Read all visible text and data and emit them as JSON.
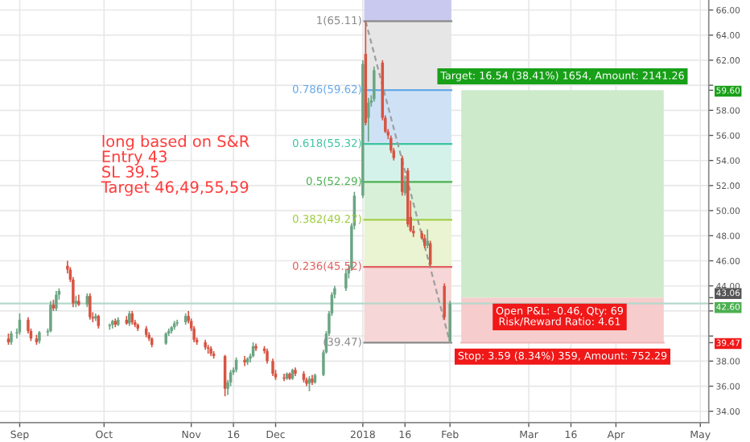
{
  "chart_data": {
    "type": "candlestick",
    "x": [
      "2017-08-28",
      "2017-08-29",
      "2017-08-31",
      "2017-09-01",
      "2017-09-04",
      "2017-09-05",
      "2017-09-07",
      "2017-09-08",
      "2017-09-11",
      "2017-09-12",
      "2017-09-13",
      "2017-09-14",
      "2017-09-15",
      "2017-09-18",
      "2017-09-19",
      "2017-09-20",
      "2017-09-21",
      "2017-09-22",
      "2017-09-25",
      "2017-09-26",
      "2017-09-27",
      "2017-09-28",
      "2017-09-29",
      "2017-10-03",
      "2017-10-04",
      "2017-10-05",
      "2017-10-06",
      "2017-10-09",
      "2017-10-10",
      "2017-10-11",
      "2017-10-12",
      "2017-10-13",
      "2017-10-16",
      "2017-10-17",
      "2017-10-18",
      "2017-10-23",
      "2017-10-24",
      "2017-10-25",
      "2017-10-26",
      "2017-10-27",
      "2017-10-30",
      "2017-10-31",
      "2017-11-01",
      "2017-11-02",
      "2017-11-03",
      "2017-11-06",
      "2017-11-07",
      "2017-11-08",
      "2017-11-09",
      "2017-11-13",
      "2017-11-14",
      "2017-11-15",
      "2017-11-16",
      "2017-11-17",
      "2017-11-20",
      "2017-11-21",
      "2017-11-22",
      "2017-11-23",
      "2017-11-24",
      "2017-11-27",
      "2017-11-28",
      "2017-11-30",
      "2017-12-01",
      "2017-12-04",
      "2017-12-05",
      "2017-12-06",
      "2017-12-07",
      "2017-12-08",
      "2017-12-11",
      "2017-12-12",
      "2017-12-13",
      "2017-12-14",
      "2017-12-15",
      "2017-12-18",
      "2017-12-19",
      "2017-12-20",
      "2017-12-21",
      "2017-12-22",
      "2017-12-26",
      "2017-12-27",
      "2017-12-28",
      "2017-12-29",
      "2018-01-01",
      "2018-01-02",
      "2018-01-03",
      "2018-01-04",
      "2018-01-05",
      "2018-01-08",
      "2018-01-09",
      "2018-01-10",
      "2018-01-11",
      "2018-01-12",
      "2018-01-15",
      "2018-01-16",
      "2018-01-17",
      "2018-01-18",
      "2018-01-19",
      "2018-01-22",
      "2018-01-23",
      "2018-01-24",
      "2018-01-25",
      "2018-01-30",
      "2018-02-01"
    ],
    "ohlc": [
      [
        39.8,
        40.2,
        39.3,
        39.5
      ],
      [
        39.5,
        40.4,
        39.3,
        40.2
      ],
      [
        40.2,
        40.6,
        39.8,
        40.3
      ],
      [
        40.3,
        41.8,
        40.1,
        41.3
      ],
      [
        41.3,
        41.5,
        40.2,
        40.4
      ],
      [
        40.4,
        40.6,
        39.6,
        39.8
      ],
      [
        39.8,
        40.1,
        39.3,
        39.5
      ],
      [
        39.6,
        40.4,
        39.4,
        40.3
      ],
      [
        40.3,
        40.6,
        40.0,
        40.4
      ],
      [
        40.4,
        42.8,
        40.3,
        42.5
      ],
      [
        42.5,
        42.9,
        42.0,
        42.2
      ],
      [
        42.2,
        43.6,
        42.0,
        43.3
      ],
      [
        43.3,
        43.8,
        42.9,
        43.6
      ],
      [
        45.6,
        46.0,
        45.0,
        45.3
      ],
      [
        45.3,
        45.5,
        44.3,
        44.5
      ],
      [
        44.5,
        44.7,
        42.3,
        42.6
      ],
      [
        42.6,
        43.2,
        42.3,
        42.8
      ],
      [
        42.8,
        43.3,
        42.4,
        42.5
      ],
      [
        42.5,
        43.4,
        42.3,
        43.2
      ],
      [
        43.2,
        43.4,
        41.3,
        41.5
      ],
      [
        41.5,
        41.9,
        41.1,
        41.4
      ],
      [
        41.4,
        41.8,
        41.2,
        41.6
      ],
      [
        41.6,
        41.7,
        40.6,
        40.8
      ],
      [
        40.8,
        41.0,
        40.5,
        40.9
      ],
      [
        40.9,
        41.3,
        40.6,
        41.2
      ],
      [
        41.2,
        41.4,
        40.7,
        40.9
      ],
      [
        40.9,
        41.5,
        40.8,
        41.3
      ],
      [
        41.3,
        41.6,
        40.9,
        41.0
      ],
      [
        41.0,
        42.0,
        40.8,
        41.8
      ],
      [
        41.8,
        42.0,
        40.9,
        41.1
      ],
      [
        41.1,
        41.3,
        40.7,
        40.9
      ],
      [
        40.9,
        41.0,
        40.4,
        40.6
      ],
      [
        40.6,
        40.8,
        39.9,
        40.1
      ],
      [
        40.1,
        40.3,
        39.6,
        39.8
      ],
      [
        39.8,
        39.9,
        39.1,
        39.3
      ],
      [
        39.4,
        40.3,
        39.3,
        40.2
      ],
      [
        40.2,
        40.6,
        40.0,
        40.4
      ],
      [
        40.4,
        40.8,
        40.2,
        40.7
      ],
      [
        40.7,
        41.2,
        40.5,
        41.0
      ],
      [
        41.0,
        41.3,
        40.8,
        41.1
      ],
      [
        41.1,
        41.8,
        40.9,
        41.6
      ],
      [
        41.6,
        42.0,
        41.0,
        41.2
      ],
      [
        41.2,
        41.4,
        40.4,
        40.6
      ],
      [
        40.6,
        40.8,
        39.5,
        39.7
      ],
      [
        39.7,
        39.9,
        39.3,
        39.5
      ],
      [
        39.5,
        39.7,
        38.9,
        39.1
      ],
      [
        39.1,
        39.3,
        38.6,
        39.0
      ],
      [
        39.0,
        39.2,
        38.4,
        38.6
      ],
      [
        38.6,
        38.8,
        38.2,
        38.4
      ],
      [
        38.4,
        38.5,
        35.2,
        35.8
      ],
      [
        35.8,
        36.5,
        35.3,
        36.3
      ],
      [
        36.3,
        37.3,
        36.0,
        37.1
      ],
      [
        37.1,
        37.5,
        36.9,
        37.3
      ],
      [
        37.3,
        38.3,
        37.1,
        38.1
      ],
      [
        38.1,
        38.4,
        37.6,
        37.9
      ],
      [
        37.9,
        38.3,
        37.7,
        38.2
      ],
      [
        38.2,
        38.6,
        37.9,
        38.4
      ],
      [
        38.4,
        39.5,
        38.3,
        39.2
      ],
      [
        39.2,
        39.4,
        38.8,
        39.0
      ],
      [
        39.0,
        39.2,
        38.6,
        38.8
      ],
      [
        38.8,
        39.0,
        37.8,
        38.0
      ],
      [
        38.0,
        38.2,
        36.8,
        37.0
      ],
      [
        37.0,
        37.3,
        36.5,
        36.7
      ],
      [
        36.7,
        37.0,
        36.4,
        36.6
      ],
      [
        36.6,
        37.1,
        36.5,
        37.0
      ],
      [
        37.0,
        37.1,
        36.5,
        36.6
      ],
      [
        36.6,
        37.4,
        36.5,
        37.3
      ],
      [
        37.3,
        37.5,
        36.8,
        37.0
      ],
      [
        37.0,
        37.2,
        36.3,
        36.5
      ],
      [
        36.5,
        36.7,
        36.0,
        36.2
      ],
      [
        36.2,
        36.8,
        35.6,
        36.6
      ],
      [
        36.6,
        36.9,
        36.1,
        36.3
      ],
      [
        36.3,
        37.0,
        36.2,
        36.9
      ],
      [
        36.9,
        38.9,
        36.8,
        38.7
      ],
      [
        38.7,
        40.4,
        38.6,
        40.2
      ],
      [
        40.2,
        42.0,
        40.0,
        41.8
      ],
      [
        41.8,
        43.5,
        41.6,
        43.3
      ],
      [
        43.3,
        44.0,
        43.0,
        43.8
      ],
      [
        43.8,
        45.3,
        43.6,
        45.0
      ],
      [
        45.0,
        45.7,
        44.6,
        45.4
      ],
      [
        45.4,
        49.0,
        45.2,
        48.8
      ],
      [
        48.8,
        51.5,
        48.5,
        51.2
      ],
      [
        51.2,
        62.0,
        51.0,
        61.7
      ],
      [
        62.5,
        65.11,
        56.8,
        57.0
      ],
      [
        57.4,
        59.0,
        55.5,
        58.6
      ],
      [
        58.6,
        59.2,
        58.3,
        58.8
      ],
      [
        58.9,
        61.5,
        58.7,
        61.2
      ],
      [
        61.8,
        62.0,
        57.2,
        57.4
      ],
      [
        57.4,
        57.6,
        56.2,
        56.3
      ],
      [
        56.3,
        56.5,
        55.7,
        56.0
      ],
      [
        55.8,
        56.0,
        54.6,
        54.8
      ],
      [
        54.8,
        55.0,
        54.0,
        54.2
      ],
      [
        54.2,
        54.4,
        51.2,
        51.5
      ],
      [
        51.4,
        52.8,
        51.2,
        52.3
      ],
      [
        53.2,
        53.4,
        48.7,
        48.9
      ],
      [
        49.5,
        50.8,
        48.3,
        48.4
      ],
      [
        48.4,
        48.8,
        47.9,
        48.2
      ],
      [
        48.2,
        48.4,
        47.7,
        47.8
      ],
      [
        47.8,
        48.1,
        47.0,
        47.2
      ],
      [
        47.2,
        48.5,
        47.0,
        47.6
      ],
      [
        47.4,
        47.6,
        45.5,
        45.7
      ],
      [
        44.0,
        44.2,
        41.3,
        41.5
      ],
      [
        39.6,
        42.8,
        39.47,
        42.6
      ]
    ],
    "colors": [
      "#d75442",
      "#6ba583",
      "#6ba583",
      "#6ba583",
      "#d75442",
      "#d75442",
      "#d75442",
      "#6ba583",
      "#6ba583",
      "#6ba583",
      "#d75442",
      "#6ba583",
      "#6ba583",
      "#d75442",
      "#d75442",
      "#d75442",
      "#6ba583",
      "#d75442",
      "#6ba583",
      "#d75442",
      "#d75442",
      "#6ba583",
      "#d75442",
      "#6ba583",
      "#6ba583",
      "#d75442",
      "#6ba583",
      "#d75442",
      "#6ba583",
      "#d75442",
      "#d75442",
      "#d75442",
      "#d75442",
      "#d75442",
      "#d75442",
      "#6ba583",
      "#6ba583",
      "#6ba583",
      "#6ba583",
      "#6ba583",
      "#6ba583",
      "#d75442",
      "#d75442",
      "#d75442",
      "#d75442",
      "#d75442",
      "#d75442",
      "#d75442",
      "#d75442",
      "#d75442",
      "#6ba583",
      "#6ba583",
      "#6ba583",
      "#6ba583",
      "#d75442",
      "#6ba583",
      "#6ba583",
      "#6ba583",
      "#d75442",
      "#d75442",
      "#d75442",
      "#d75442",
      "#d75442",
      "#d75442",
      "#6ba583",
      "#d75442",
      "#6ba583",
      "#d75442",
      "#d75442",
      "#d75442",
      "#6ba583",
      "#d75442",
      "#6ba583",
      "#6ba583",
      "#6ba583",
      "#6ba583",
      "#6ba583",
      "#6ba583",
      "#6ba583",
      "#6ba583",
      "#6ba583",
      "#6ba583",
      "#6ba583",
      "#d75442",
      "#6ba583",
      "#6ba583",
      "#6ba583",
      "#d75442",
      "#d75442",
      "#d75442",
      "#d75442",
      "#d75442",
      "#d75442",
      "#6ba583",
      "#d75442",
      "#d75442",
      "#d75442",
      "#d75442",
      "#d75442",
      "#6ba583",
      "#d75442",
      "#d75442",
      "#6ba583"
    ],
    "series": [
      {
        "type": "line",
        "x": [
          "2018-01-02",
          "2018-02-01"
        ],
        "values": [
          65.11,
          39.47
        ],
        "color": "#9e9e9e",
        "line_style": "dashed"
      },
      {
        "type": "area",
        "x": [
          "2018-02-05",
          "2018-04-18"
        ],
        "values": [
          59.6,
          59.6
        ],
        "color": "#cdeacb"
      },
      {
        "type": "area",
        "x": [
          "2018-02-05",
          "2018-04-18"
        ],
        "values": [
          43.06,
          43.06
        ],
        "color": "#f7cccc"
      },
      {
        "type": "line",
        "x": [
          "2018-02-05",
          "2018-04-18"
        ],
        "values": [
          39.47,
          39.47
        ],
        "color": "#f2b8b8"
      }
    ],
    "bands": [
      {
        "axis": "y",
        "from": 65.11,
        "to": 66.8,
        "color": "#c9c9f0"
      },
      {
        "axis": "y",
        "from": 59.62,
        "to": 65.11,
        "color": "#e6e6e6"
      },
      {
        "axis": "y",
        "from": 55.32,
        "to": 59.62,
        "color": "#cfe2f5"
      },
      {
        "axis": "y",
        "from": 52.29,
        "to": 55.32,
        "color": "#d5f2ea"
      },
      {
        "axis": "y",
        "from": 49.27,
        "to": 52.29,
        "color": "#d8f0d8"
      },
      {
        "axis": "y",
        "from": 45.52,
        "to": 49.27,
        "color": "#eaf3d2"
      },
      {
        "axis": "y",
        "from": 39.47,
        "to": 45.52,
        "color": "#f6d6d6"
      }
    ],
    "ref_lines": [
      {
        "axis": "y",
        "value": 65.11,
        "label": "1(65.11)",
        "color": "#8a8a8a"
      },
      {
        "axis": "y",
        "value": 59.62,
        "label": "0.786(59.62)",
        "color": "#64a8e8"
      },
      {
        "axis": "y",
        "value": 55.32,
        "label": "0.618(55.32)",
        "color": "#3cc3a0"
      },
      {
        "axis": "y",
        "value": 52.29,
        "label": "0.5(52.29)",
        "color": "#4caf50"
      },
      {
        "axis": "y",
        "value": 49.27,
        "label": "0.382(49.27)",
        "color": "#9ccc3c"
      },
      {
        "axis": "y",
        "value": 45.52,
        "label": "0.236(45.52)",
        "color": "#e06060"
      },
      {
        "axis": "y",
        "value": 39.47,
        "label": "(39.47)",
        "color": "#8a8a8a"
      },
      {
        "axis": "y",
        "value": 42.6,
        "color": "#b5d9cc"
      }
    ],
    "annotations": [
      "long based on S&R",
      "Entry 43",
      "SL 39.5",
      "Target 46,49,55,59",
      {
        "text": "Target: 16.54 (38.41%) 1654, Amount: 2141.26",
        "x": "2018-03-13",
        "y": 59.6
      },
      {
        "text": "Open P&L: -0.46, Qty: 69\nRisk/Reward Ratio: 4.61",
        "x": "2018-03-12",
        "y": 43.06
      },
      {
        "text": "Stop: 3.59 (8.34%) 359, Amount: 752.29",
        "x": "2018-03-13",
        "y": 39.47
      }
    ],
    "xlim": [
      "2017-08-25",
      "2018-05-04"
    ],
    "xticks": [
      {
        "value": "2017-09-01",
        "label": "Sep"
      },
      {
        "value": "2017-10-01",
        "label": "Oct"
      },
      {
        "value": "2017-11-01",
        "label": "Nov"
      },
      {
        "value": "2017-11-16",
        "label": "16"
      },
      {
        "value": "2017-12-01",
        "label": "Dec"
      },
      {
        "value": "2018-01-01",
        "label": "2018"
      },
      {
        "value": "2018-01-16",
        "label": "16"
      },
      {
        "value": "2018-02-01",
        "label": "Feb"
      },
      {
        "value": "2018-03-01",
        "label": "Mar"
      },
      {
        "value": "2018-03-16",
        "label": "16"
      },
      {
        "value": "2018-04-01",
        "label": "Apr"
      },
      {
        "value": "2018-05-01",
        "label": "May"
      }
    ],
    "ylim": [
      33.1,
      66.8
    ],
    "yticks": [
      {
        "value": 34,
        "label": "34.00"
      },
      {
        "value": 36,
        "label": "36.00"
      },
      {
        "value": 38,
        "label": "38.00"
      },
      {
        "value": 39.47,
        "label": "39.47"
      },
      {
        "value": 40,
        "label": null
      },
      {
        "value": 42,
        "label": null
      },
      {
        "value": 42.6,
        "label": "42.60"
      },
      {
        "value": 43.06,
        "label": "43.06"
      },
      {
        "value": 44,
        "label": "44.00"
      },
      {
        "value": 46,
        "label": "46.00"
      },
      {
        "value": 48,
        "label": "48.00"
      },
      {
        "value": 50,
        "label": "50.00"
      },
      {
        "value": 52,
        "label": "52.00"
      },
      {
        "value": 54,
        "label": "54.00"
      },
      {
        "value": 56,
        "label": "56.00"
      },
      {
        "value": 58,
        "label": "58.00"
      },
      {
        "value": 59.6,
        "label": "59.60"
      },
      {
        "value": 60,
        "label": null
      },
      {
        "value": 62,
        "label": "62.00"
      },
      {
        "value": 64,
        "label": "64.00"
      },
      {
        "value": 66,
        "label": "66.00"
      }
    ],
    "grid": true,
    "legend": false
  }
}
